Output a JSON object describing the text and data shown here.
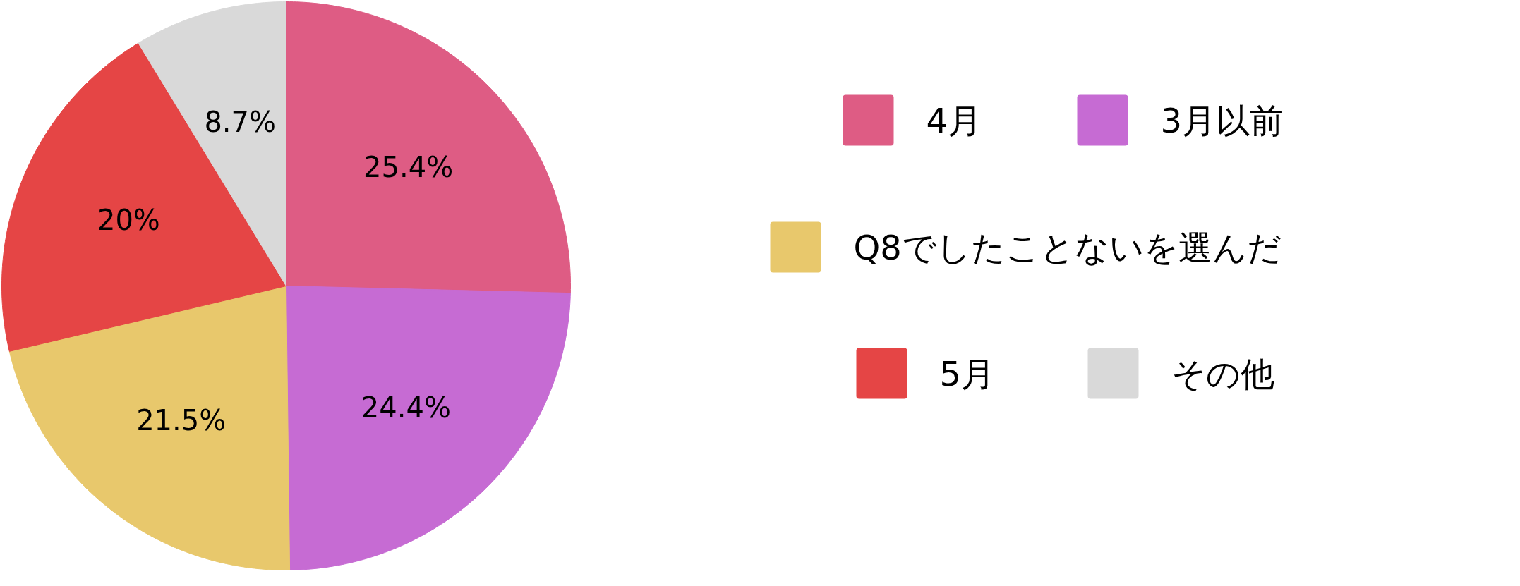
{
  "chart_data": {
    "type": "pie",
    "categories": [
      "4月",
      "3月以前",
      "Q8でしたことないを選んだ",
      "5月",
      "その他"
    ],
    "values": [
      25.4,
      24.4,
      21.5,
      20,
      8.7
    ],
    "colors": [
      "#de5c84",
      "#c66bd3",
      "#e8c86c",
      "#e54545",
      "#d9d9d9"
    ],
    "value_labels": [
      "25.4%",
      "24.4%",
      "21.5%",
      "20%",
      "8.7%"
    ],
    "legend": "right"
  }
}
